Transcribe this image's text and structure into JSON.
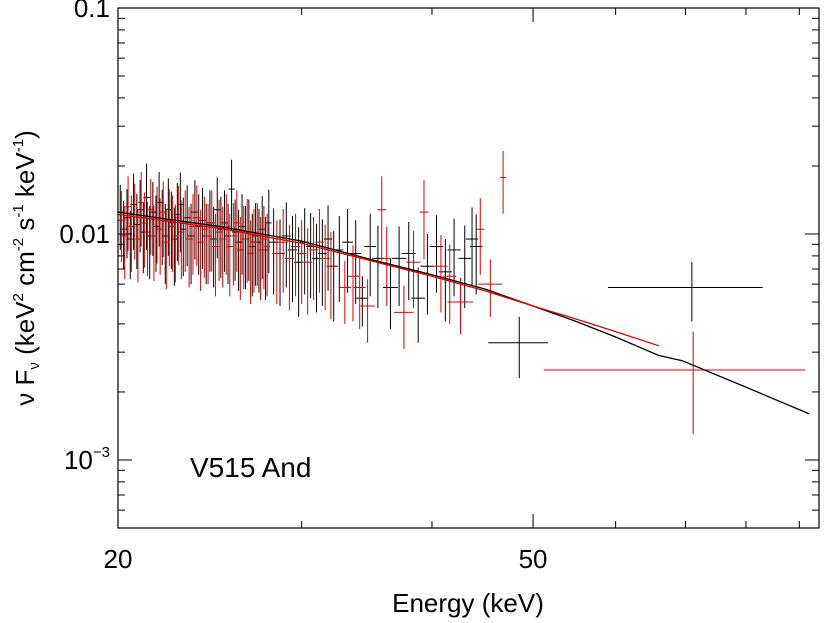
{
  "chart_data": {
    "type": "scatter",
    "xlabel": "Energy (keV)",
    "ylabel": {
      "prefix": "ν F",
      "sub": "ν",
      "unit_open": " (keV",
      "sup1": "2",
      "mid1": " cm",
      "sup2": "-2",
      "mid2": " s",
      "sup3": "-1",
      "mid3": " keV",
      "sup4": "-1",
      "close": ")"
    },
    "annotation": "V515 And",
    "xscale": "log",
    "yscale": "log",
    "xlim": [
      20,
      94
    ],
    "ylim": [
      0.0005,
      0.1
    ],
    "x_tick_labels": [
      {
        "value": 20,
        "label": "20"
      },
      {
        "value": 50,
        "label": "50"
      }
    ],
    "y_tick_labels": [
      {
        "value": 0.1,
        "label": "0.1"
      },
      {
        "value": 0.01,
        "label": "0.01"
      },
      {
        "value": 0.001,
        "base": "10",
        "exp": "−3"
      }
    ],
    "colors": {
      "series_a": "#000000",
      "series_b": "#e00000",
      "axes": "#000000"
    },
    "series": [
      {
        "color": "#000000",
        "points": [
          [
            20.1,
            0.0125,
            0.15,
            0.004
          ],
          [
            20.25,
            0.0105,
            0.15,
            0.0035
          ],
          [
            20.4,
            0.0118,
            0.15,
            0.004
          ],
          [
            20.55,
            0.0095,
            0.15,
            0.0032
          ],
          [
            20.7,
            0.0135,
            0.15,
            0.005
          ],
          [
            20.85,
            0.011,
            0.15,
            0.004
          ],
          [
            21.0,
            0.0128,
            0.15,
            0.0045
          ],
          [
            21.15,
            0.0102,
            0.15,
            0.0035
          ],
          [
            21.3,
            0.0145,
            0.15,
            0.006
          ],
          [
            21.45,
            0.0098,
            0.15,
            0.0035
          ],
          [
            21.6,
            0.0125,
            0.15,
            0.0045
          ],
          [
            21.75,
            0.0108,
            0.15,
            0.004
          ],
          [
            21.9,
            0.0138,
            0.15,
            0.005
          ],
          [
            22.05,
            0.0115,
            0.15,
            0.0042
          ],
          [
            22.2,
            0.0098,
            0.15,
            0.0038
          ],
          [
            22.35,
            0.0128,
            0.15,
            0.0048
          ],
          [
            22.5,
            0.0112,
            0.15,
            0.0042
          ],
          [
            22.65,
            0.0095,
            0.15,
            0.0036
          ],
          [
            22.8,
            0.0122,
            0.15,
            0.0046
          ],
          [
            22.95,
            0.0135,
            0.15,
            0.0052
          ],
          [
            23.1,
            0.0105,
            0.15,
            0.004
          ],
          [
            23.3,
            0.0118,
            0.17,
            0.0046
          ],
          [
            23.5,
            0.0098,
            0.17,
            0.0038
          ],
          [
            23.7,
            0.0125,
            0.17,
            0.0048
          ],
          [
            23.9,
            0.0108,
            0.17,
            0.0042
          ],
          [
            24.1,
            0.0115,
            0.17,
            0.0045
          ],
          [
            24.3,
            0.0098,
            0.17,
            0.0038
          ],
          [
            24.5,
            0.0112,
            0.17,
            0.0044
          ],
          [
            24.7,
            0.0095,
            0.17,
            0.0037
          ],
          [
            24.9,
            0.0128,
            0.17,
            0.005
          ],
          [
            25.1,
            0.0105,
            0.17,
            0.0041
          ],
          [
            25.3,
            0.0112,
            0.17,
            0.0044
          ],
          [
            25.5,
            0.0098,
            0.17,
            0.0038
          ],
          [
            25.7,
            0.0158,
            0.17,
            0.0055
          ],
          [
            25.9,
            0.0102,
            0.17,
            0.004
          ],
          [
            26.1,
            0.0092,
            0.17,
            0.0036
          ],
          [
            26.3,
            0.0108,
            0.17,
            0.0042
          ],
          [
            26.5,
            0.0095,
            0.17,
            0.0038
          ],
          [
            26.7,
            0.0102,
            0.17,
            0.004
          ],
          [
            26.9,
            0.0088,
            0.17,
            0.0035
          ],
          [
            27.1,
            0.0098,
            0.17,
            0.0039
          ],
          [
            27.3,
            0.0092,
            0.17,
            0.0037
          ],
          [
            27.5,
            0.0105,
            0.17,
            0.0042
          ],
          [
            27.7,
            0.0085,
            0.17,
            0.0034
          ],
          [
            27.9,
            0.0112,
            0.17,
            0.0045
          ],
          [
            28.2,
            0.0092,
            0.3,
            0.0038
          ],
          [
            28.6,
            0.0082,
            0.3,
            0.0034
          ],
          [
            29.0,
            0.0098,
            0.3,
            0.004
          ],
          [
            29.4,
            0.0085,
            0.3,
            0.0035
          ],
          [
            29.8,
            0.0075,
            0.3,
            0.0032
          ],
          [
            30.2,
            0.0092,
            0.3,
            0.0038
          ],
          [
            30.6,
            0.0088,
            0.3,
            0.0036
          ],
          [
            31.0,
            0.0078,
            0.3,
            0.0033
          ],
          [
            31.4,
            0.0082,
            0.3,
            0.0034
          ],
          [
            31.8,
            0.0095,
            0.3,
            0.0039
          ],
          [
            32.2,
            0.0072,
            0.3,
            0.0031
          ],
          [
            32.6,
            0.0085,
            0.3,
            0.0035
          ],
          [
            33.2,
            0.0092,
            0.4,
            0.0037
          ],
          [
            33.8,
            0.0082,
            0.4,
            0.0033
          ],
          [
            34.3,
            0.0052,
            0.45,
            0.0013
          ],
          [
            34.9,
            0.0088,
            0.45,
            0.0035
          ],
          [
            35.5,
            0.0078,
            0.45,
            0.0031
          ],
          [
            36.5,
            0.0058,
            0.6,
            0.002
          ],
          [
            37.2,
            0.0078,
            0.6,
            0.003
          ],
          [
            38.0,
            0.0082,
            0.6,
            0.0031
          ],
          [
            38.8,
            0.0052,
            0.6,
            0.0019
          ],
          [
            39.6,
            0.0072,
            0.6,
            0.0028
          ],
          [
            40.4,
            0.0088,
            0.6,
            0.0033
          ],
          [
            41.2,
            0.0068,
            0.6,
            0.0027
          ],
          [
            42.0,
            0.0085,
            0.6,
            0.0032
          ],
          [
            43.0,
            0.0078,
            0.6,
            0.0031
          ],
          [
            43.7,
            0.0095,
            0.6,
            0.0036
          ],
          [
            44.1,
            0.0088,
            0.6,
            0.0034
          ],
          [
            48.5,
            0.0033,
            3.2,
            0.001
          ],
          [
            71.0,
            0.0058,
            12.0,
            0.0017
          ]
        ]
      },
      {
        "color": "#e00000",
        "points": [
          [
            20.15,
            0.0115,
            0.15,
            0.004
          ],
          [
            20.3,
            0.0098,
            0.15,
            0.0035
          ],
          [
            20.45,
            0.0132,
            0.15,
            0.0048
          ],
          [
            20.6,
            0.0108,
            0.15,
            0.004
          ],
          [
            20.75,
            0.0122,
            0.15,
            0.0045
          ],
          [
            20.9,
            0.0095,
            0.15,
            0.0034
          ],
          [
            21.05,
            0.0138,
            0.15,
            0.005
          ],
          [
            21.2,
            0.0112,
            0.15,
            0.0041
          ],
          [
            21.35,
            0.0102,
            0.15,
            0.0037
          ],
          [
            21.5,
            0.0128,
            0.15,
            0.0047
          ],
          [
            21.65,
            0.0098,
            0.15,
            0.0036
          ],
          [
            21.8,
            0.0118,
            0.15,
            0.0044
          ],
          [
            21.95,
            0.0105,
            0.15,
            0.0039
          ],
          [
            22.1,
            0.0125,
            0.15,
            0.0046
          ],
          [
            22.25,
            0.0092,
            0.15,
            0.0035
          ],
          [
            22.4,
            0.0115,
            0.15,
            0.0043
          ],
          [
            22.55,
            0.0108,
            0.15,
            0.004
          ],
          [
            22.7,
            0.0098,
            0.15,
            0.0037
          ],
          [
            22.85,
            0.0118,
            0.15,
            0.0045
          ],
          [
            23.0,
            0.0102,
            0.15,
            0.0039
          ],
          [
            23.2,
            0.0112,
            0.17,
            0.0044
          ],
          [
            23.4,
            0.0095,
            0.17,
            0.0037
          ],
          [
            23.6,
            0.0108,
            0.17,
            0.0042
          ],
          [
            23.8,
            0.0118,
            0.17,
            0.0046
          ],
          [
            24.0,
            0.0092,
            0.17,
            0.0036
          ],
          [
            24.2,
            0.0105,
            0.17,
            0.0041
          ],
          [
            24.4,
            0.0098,
            0.17,
            0.0038
          ],
          [
            24.6,
            0.0112,
            0.17,
            0.0044
          ],
          [
            24.8,
            0.0088,
            0.17,
            0.0035
          ],
          [
            25.0,
            0.0102,
            0.17,
            0.004
          ],
          [
            25.2,
            0.0095,
            0.17,
            0.0037
          ],
          [
            25.4,
            0.0108,
            0.17,
            0.0042
          ],
          [
            25.6,
            0.0088,
            0.17,
            0.0035
          ],
          [
            25.8,
            0.0098,
            0.17,
            0.0039
          ],
          [
            26.0,
            0.0112,
            0.17,
            0.0044
          ],
          [
            26.2,
            0.0085,
            0.17,
            0.0034
          ],
          [
            26.4,
            0.0095,
            0.17,
            0.0038
          ],
          [
            26.6,
            0.0102,
            0.17,
            0.0041
          ],
          [
            26.8,
            0.0082,
            0.17,
            0.0033
          ],
          [
            27.0,
            0.0092,
            0.17,
            0.0037
          ],
          [
            27.2,
            0.0098,
            0.17,
            0.0039
          ],
          [
            27.4,
            0.0085,
            0.17,
            0.0034
          ],
          [
            27.6,
            0.0095,
            0.17,
            0.0038
          ],
          [
            27.8,
            0.0088,
            0.17,
            0.0035
          ],
          [
            28.4,
            0.0082,
            0.3,
            0.0033
          ],
          [
            28.8,
            0.0092,
            0.3,
            0.0037
          ],
          [
            29.2,
            0.0078,
            0.3,
            0.0032
          ],
          [
            29.6,
            0.0088,
            0.3,
            0.0035
          ],
          [
            30.0,
            0.0082,
            0.3,
            0.0033
          ],
          [
            30.4,
            0.0075,
            0.3,
            0.0031
          ],
          [
            30.8,
            0.0085,
            0.3,
            0.0034
          ],
          [
            31.2,
            0.0092,
            0.3,
            0.0037
          ],
          [
            31.6,
            0.0078,
            0.3,
            0.0032
          ],
          [
            32.0,
            0.0072,
            0.3,
            0.003
          ],
          [
            33.0,
            0.0058,
            0.45,
            0.0018
          ],
          [
            33.6,
            0.0065,
            0.45,
            0.0024
          ],
          [
            34.1,
            0.0058,
            0.45,
            0.002
          ],
          [
            34.7,
            0.0048,
            0.6,
            0.0015
          ],
          [
            35.8,
            0.0128,
            0.35,
            0.0052
          ],
          [
            36.2,
            0.0078,
            0.35,
            0.003
          ],
          [
            37.6,
            0.0045,
            0.8,
            0.0014
          ],
          [
            38.4,
            0.0075,
            0.6,
            0.0028
          ],
          [
            39.3,
            0.0125,
            0.4,
            0.0048
          ],
          [
            40.8,
            0.0072,
            0.6,
            0.0027
          ],
          [
            41.6,
            0.0065,
            0.6,
            0.0025
          ],
          [
            42.6,
            0.005,
            1.2,
            0.0014
          ],
          [
            44.5,
            0.0105,
            0.4,
            0.0039
          ],
          [
            45.5,
            0.006,
            1.2,
            0.0017
          ],
          [
            46.8,
            0.0178,
            0.3,
            0.0055
          ],
          [
            71.2,
            0.0025,
            20.0,
            0.0012
          ]
        ]
      }
    ],
    "models": [
      {
        "color": "#000000",
        "points": [
          [
            20,
            0.0125
          ],
          [
            25,
            0.0108
          ],
          [
            30,
            0.0093
          ],
          [
            35,
            0.0077
          ],
          [
            40,
            0.0066
          ],
          [
            45,
            0.0057
          ],
          [
            50,
            0.0048
          ],
          [
            55,
            0.0041
          ],
          [
            60,
            0.0035
          ],
          [
            66,
            0.0029
          ],
          [
            69.5,
            0.00275
          ],
          [
            80,
            0.0021
          ],
          [
            92,
            0.0016
          ]
        ]
      },
      {
        "color": "#e00000",
        "points": [
          [
            20,
            0.0122
          ],
          [
            25,
            0.0106
          ],
          [
            30,
            0.0091
          ],
          [
            35,
            0.0076
          ],
          [
            40,
            0.0065
          ],
          [
            45,
            0.0056
          ],
          [
            50,
            0.0048
          ],
          [
            55,
            0.0042
          ],
          [
            60,
            0.0037
          ],
          [
            66,
            0.0032
          ]
        ]
      }
    ]
  }
}
